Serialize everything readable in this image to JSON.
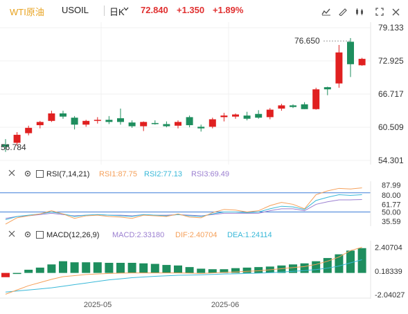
{
  "header": {
    "symbol_cn": "WTI原油",
    "symbol_code": "USOIL",
    "period": "日K",
    "price": "72.840",
    "change": "+1.350",
    "change_pct": "+1.89%"
  },
  "main_chart": {
    "y_ticks": [
      "79.133",
      "72.925",
      "66.717",
      "60.509",
      "54.301"
    ],
    "high_label": "76.650",
    "low_label": "56.784",
    "candles": [
      {
        "o": 57.3,
        "h": 58.3,
        "l": 55.9,
        "c": 56.9
      },
      {
        "o": 57.6,
        "h": 59.6,
        "l": 57.1,
        "c": 59.1
      },
      {
        "o": 59.4,
        "h": 60.8,
        "l": 59.0,
        "c": 60.4
      },
      {
        "o": 60.9,
        "h": 61.7,
        "l": 60.3,
        "c": 61.5
      },
      {
        "o": 61.7,
        "h": 63.6,
        "l": 61.5,
        "c": 63.1
      },
      {
        "o": 63.1,
        "h": 63.6,
        "l": 62.1,
        "c": 62.5
      },
      {
        "o": 62.3,
        "h": 62.6,
        "l": 60.1,
        "c": 61.0
      },
      {
        "o": 61.0,
        "h": 61.9,
        "l": 60.6,
        "c": 61.7
      },
      {
        "o": 61.7,
        "h": 62.4,
        "l": 61.2,
        "c": 61.9
      },
      {
        "o": 61.9,
        "h": 62.6,
        "l": 61.1,
        "c": 61.5
      },
      {
        "o": 62.2,
        "h": 64.0,
        "l": 61.0,
        "c": 61.5
      },
      {
        "o": 61.4,
        "h": 61.8,
        "l": 60.4,
        "c": 60.7
      },
      {
        "o": 60.7,
        "h": 61.6,
        "l": 59.8,
        "c": 61.5
      },
      {
        "o": 61.3,
        "h": 61.8,
        "l": 61.0,
        "c": 61.1
      },
      {
        "o": 61.1,
        "h": 61.6,
        "l": 60.5,
        "c": 60.7
      },
      {
        "o": 60.8,
        "h": 61.8,
        "l": 60.3,
        "c": 61.5
      },
      {
        "o": 62.4,
        "h": 62.7,
        "l": 60.5,
        "c": 60.9
      },
      {
        "o": 60.6,
        "h": 61.0,
        "l": 59.7,
        "c": 60.3
      },
      {
        "o": 60.6,
        "h": 62.3,
        "l": 60.3,
        "c": 62.0
      },
      {
        "o": 62.4,
        "h": 63.2,
        "l": 61.6,
        "c": 62.7
      },
      {
        "o": 62.5,
        "h": 63.1,
        "l": 62.1,
        "c": 62.9
      },
      {
        "o": 62.7,
        "h": 63.4,
        "l": 61.8,
        "c": 62.1
      },
      {
        "o": 63.0,
        "h": 63.7,
        "l": 62.1,
        "c": 62.3
      },
      {
        "o": 62.4,
        "h": 64.1,
        "l": 62.0,
        "c": 63.8
      },
      {
        "o": 64.0,
        "h": 64.9,
        "l": 63.6,
        "c": 64.6
      },
      {
        "o": 64.6,
        "h": 64.8,
        "l": 64.1,
        "c": 64.3
      },
      {
        "o": 64.8,
        "h": 65.2,
        "l": 63.9,
        "c": 63.9
      },
      {
        "o": 63.9,
        "h": 67.9,
        "l": 63.8,
        "c": 67.6
      },
      {
        "o": 68.0,
        "h": 68.1,
        "l": 66.5,
        "c": 67.6
      },
      {
        "o": 68.7,
        "h": 75.9,
        "l": 67.9,
        "c": 74.5
      },
      {
        "o": 76.5,
        "h": 77.2,
        "l": 69.9,
        "c": 72.3
      },
      {
        "o": 72.1,
        "h": 73.5,
        "l": 72.0,
        "c": 73.3
      }
    ]
  },
  "rsi": {
    "title": "RSI(7,14,21)",
    "rsi1_label": "RSI1:87.75",
    "rsi2_label": "RSI2:77.13",
    "rsi3_label": "RSI3:69.49",
    "y_ticks": [
      "87.99",
      "80.00",
      "61.77",
      "50.00",
      "35.59"
    ],
    "rsi1": [
      31,
      41,
      44,
      47,
      52,
      47,
      40,
      44,
      45,
      43,
      42,
      40,
      45,
      44,
      43,
      47,
      42,
      41,
      49,
      54,
      53,
      50,
      52,
      60,
      65,
      62,
      55,
      77,
      83,
      87,
      86,
      87.75
    ],
    "rsi2": [
      38,
      43,
      45,
      47,
      50,
      47,
      43,
      45,
      46,
      45,
      44,
      43,
      46,
      45,
      44,
      46,
      44,
      43,
      47,
      50,
      50,
      49,
      50,
      55,
      59,
      58,
      54,
      68,
      73,
      77,
      76,
      77.13
    ],
    "rsi3": [
      40,
      43,
      44,
      46,
      48,
      46,
      44,
      45,
      46,
      45,
      45,
      44,
      46,
      45,
      45,
      46,
      45,
      44,
      46,
      48,
      48,
      48,
      48,
      52,
      55,
      55,
      52,
      62,
      66,
      69,
      69,
      69.49
    ]
  },
  "macd": {
    "title": "MACD(12,26,9)",
    "macd_label": "MACD:2.33180",
    "dif_label": "DIF:2.40704",
    "dea_label": "DEA:1.24114",
    "y_ticks": [
      "2.40704",
      "0.18339",
      "-2.04027"
    ],
    "hist": [
      -0.4,
      0.0,
      0.3,
      0.5,
      0.8,
      1.1,
      1.0,
      1.0,
      1.0,
      0.95,
      0.95,
      0.95,
      0.9,
      0.85,
      0.75,
      0.7,
      0.55,
      0.4,
      0.35,
      0.35,
      0.45,
      0.5,
      0.55,
      0.6,
      0.7,
      0.8,
      0.9,
      1.1,
      1.4,
      1.75,
      2.1,
      2.33
    ],
    "dif": [
      -2.0,
      -1.6,
      -1.2,
      -0.9,
      -0.6,
      -0.35,
      -0.25,
      -0.15,
      -0.1,
      -0.05,
      -0.02,
      0.0,
      0.0,
      0.0,
      0.0,
      0.0,
      -0.02,
      -0.05,
      0.0,
      0.05,
      0.1,
      0.15,
      0.2,
      0.3,
      0.4,
      0.5,
      0.6,
      0.8,
      1.1,
      1.5,
      2.1,
      2.41
    ],
    "dea": [
      -1.8,
      -1.7,
      -1.6,
      -1.5,
      -1.4,
      -1.25,
      -1.1,
      -0.95,
      -0.8,
      -0.65,
      -0.55,
      -0.45,
      -0.38,
      -0.32,
      -0.27,
      -0.22,
      -0.2,
      -0.18,
      -0.14,
      -0.1,
      -0.08,
      -0.05,
      -0.02,
      0.02,
      0.08,
      0.15,
      0.22,
      0.32,
      0.45,
      0.65,
      0.95,
      1.24
    ]
  },
  "x_axis": {
    "labels": [
      "2025-05",
      "2025-06"
    ]
  },
  "colors": {
    "up": "#e02020",
    "down": "#1e8e5e",
    "rsi1": "#f5a05a",
    "rsi2": "#38b8d8",
    "rsi3": "#9b7fd0",
    "dif": "#f5a05a",
    "dea": "#38b8d8",
    "ref_line": "#3b7dd8"
  },
  "toolbar": {
    "icons": [
      "chart-type-icon",
      "draw-icon",
      "candle-style-icon",
      "fullscreen-icon",
      "close-icon"
    ]
  }
}
